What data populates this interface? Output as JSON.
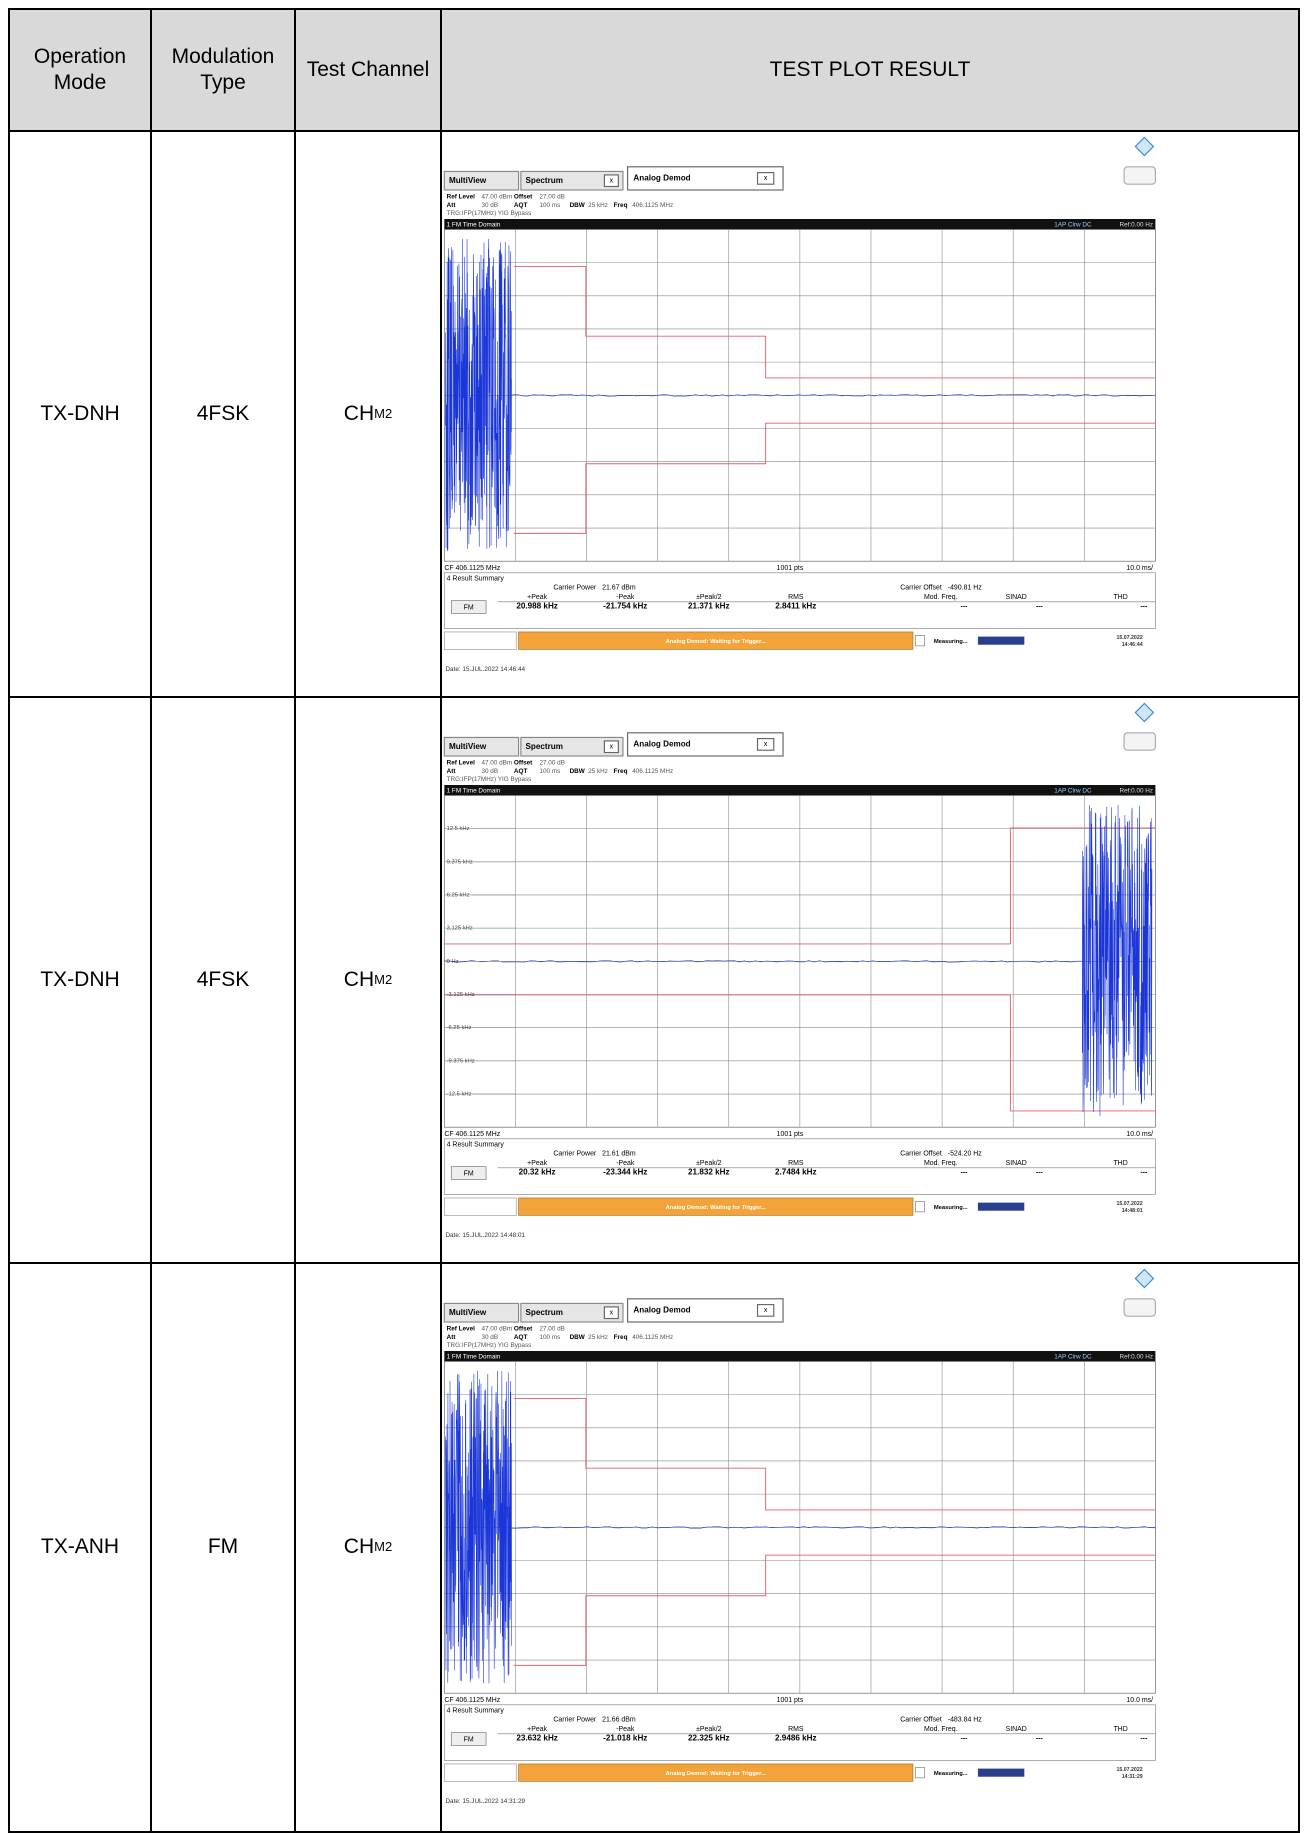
{
  "table": {
    "header": [
      "Operation Mode",
      "Modulation Type",
      "Test Channel",
      "TEST PLOT RESULT"
    ],
    "rows": [
      {
        "mode": "TX-DNH",
        "modulation": "4FSK",
        "channel": "CH",
        "channel_sub": "M2",
        "plot": {
          "carrier_power": "21.67 dBm",
          "carrier_offset": "-490.81 Hz",
          "values": [
            "20.988 kHz",
            "-21.754 kHz",
            "21.371 kHz",
            "2.8411 kHz"
          ],
          "time": "14:46:44",
          "date_line": "Date: 15.JUL.2022 14:46:44"
        }
      },
      {
        "mode": "TX-DNH",
        "modulation": "4FSK",
        "channel": "CH",
        "channel_sub": "M2",
        "plot": {
          "y_labels": [
            "12.5 kHz",
            "9.375 kHz",
            "6.25 kHz",
            "3.125 kHz",
            "0 Hz",
            "-3.125 kHz",
            "-6.25 kHz",
            "-9.375 kHz",
            "-12.5 kHz"
          ],
          "carrier_power": "21.61 dBm",
          "carrier_offset": "-524.20 Hz",
          "values": [
            "20.32 kHz",
            "-23.344 kHz",
            "21.832 kHz",
            "2.7484 kHz"
          ],
          "time": "14:48:01",
          "date_line": "Date: 15.JUL.2022 14:48:01"
        }
      },
      {
        "mode": "TX-ANH",
        "modulation": "FM",
        "channel": "CH",
        "channel_sub": "M2",
        "plot": {
          "carrier_power": "21.66 dBm",
          "carrier_offset": "-483.84 Hz",
          "values": [
            "23.632 kHz",
            "-21.018 kHz",
            "22.325 kHz",
            "2.9486 kHz"
          ],
          "time": "14:31:29",
          "date_line": "Date: 15.JUL.2022 14:31:29"
        }
      }
    ]
  },
  "plot_common": {
    "tabs": [
      "MultiView",
      "Spectrum",
      "Analog Demod"
    ],
    "close": "x",
    "ref_level_label": "Ref Level",
    "ref_level": "47.00 dBm",
    "offset_label": "Offset",
    "offset": "27.00 dB",
    "att_label": "Att",
    "att": "30 dB",
    "aqt_label": "AQT",
    "aqt": "100 ms",
    "dbw_label": "DBW",
    "dbw": "25 kHz",
    "freq_label": "Freq",
    "freq": "406.1125 MHz",
    "trg": "TRG:IFP(17MHz) YIG Bypass",
    "window_title": "1 FM Time Domain",
    "trace_info": "1AP Clrw DC",
    "ref": "Ref:0.00 Hz",
    "cf": "CF 406.1125 MHz",
    "pts": "1001 pts",
    "div": "10.0 ms/",
    "summary_title": "4 Result Summary",
    "carrier_power_label": "Carrier Power",
    "carrier_offset_label": "Carrier Offset",
    "columns": [
      "+Peak",
      "-Peak",
      "±Peak/2",
      "RMS",
      "Mod. Freq.",
      "SINAD",
      "THD"
    ],
    "demod": "FM",
    "na": "---",
    "status": "Analog Demod: Waiting for Trigger...",
    "measuring": "Measuring...",
    "status_date": "15.07.2022"
  }
}
